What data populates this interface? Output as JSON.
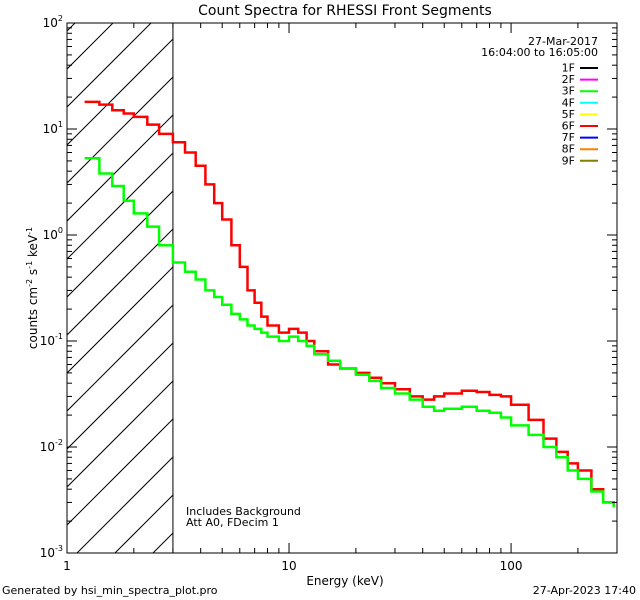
{
  "chart_data": {
    "type": "line",
    "title": "Count Spectra for RHESSI Front Segments",
    "xlabel": "Energy (keV)",
    "ylabel": "counts cm",
    "ylabel_sup1": "-2",
    "ylabel_mid": " s",
    "ylabel_sup2": "-1",
    "ylabel_end": " keV",
    "ylabel_sup3": "-1",
    "xscale": "log",
    "yscale": "log",
    "xlim": [
      1,
      300
    ],
    "ylim": [
      0.001,
      100
    ],
    "x_tick_labels": [
      {
        "value": 1,
        "base": "1",
        "exp": ""
      },
      {
        "value": 10,
        "base": "10",
        "exp": ""
      },
      {
        "value": 100,
        "base": "100",
        "exp": ""
      }
    ],
    "y_tick_labels": [
      {
        "value": 0.001,
        "base": "10",
        "exp": "-3"
      },
      {
        "value": 0.01,
        "base": "10",
        "exp": "-2"
      },
      {
        "value": 0.1,
        "base": "10",
        "exp": "-1"
      },
      {
        "value": 1,
        "base": "10",
        "exp": "0"
      },
      {
        "value": 10,
        "base": "10",
        "exp": "1"
      },
      {
        "value": 100,
        "base": "10",
        "exp": "2"
      }
    ],
    "date": "27-Mar-2017",
    "time_range": "16:04:00 to 16:05:00",
    "hatched_region_max_keV": 3,
    "annotation_lines": [
      "Includes Background",
      "Att A0, FDecim 1"
    ],
    "legend": [
      {
        "name": "1F",
        "color": "#000000"
      },
      {
        "name": "2F",
        "color": "#ff00ff"
      },
      {
        "name": "3F",
        "color": "#00ff00"
      },
      {
        "name": "4F",
        "color": "#00ffff"
      },
      {
        "name": "5F",
        "color": "#ffff00"
      },
      {
        "name": "6F",
        "color": "#ff0000"
      },
      {
        "name": "7F",
        "color": "#0000ff"
      },
      {
        "name": "8F",
        "color": "#ff8000"
      },
      {
        "name": "9F",
        "color": "#808000"
      }
    ],
    "series": [
      {
        "name": "6F",
        "color": "#ff0000",
        "x": [
          1.2,
          1.4,
          1.6,
          1.8,
          2.0,
          2.3,
          2.6,
          3.0,
          3.4,
          3.8,
          4.2,
          4.6,
          5.0,
          5.5,
          6.0,
          6.5,
          7.0,
          7.5,
          8.0,
          9.0,
          10.0,
          11.0,
          12.0,
          13.0,
          15.0,
          17.0,
          20.0,
          23.0,
          26.0,
          30.0,
          35.0,
          40.0,
          45.0,
          50.0,
          60.0,
          70.0,
          80.0,
          90.0,
          100.0,
          120.0,
          140.0,
          160.0,
          180.0,
          200.0,
          230.0,
          260.0,
          290.0
        ],
        "y": [
          18,
          17,
          15,
          14,
          13,
          11,
          9,
          7.5,
          6.0,
          4.5,
          3.0,
          2.0,
          1.4,
          0.8,
          0.5,
          0.3,
          0.23,
          0.17,
          0.14,
          0.12,
          0.13,
          0.12,
          0.1,
          0.08,
          0.06,
          0.055,
          0.05,
          0.045,
          0.04,
          0.035,
          0.03,
          0.028,
          0.03,
          0.032,
          0.034,
          0.033,
          0.031,
          0.03,
          0.025,
          0.018,
          0.012,
          0.009,
          0.007,
          0.006,
          0.004,
          0.003,
          0.0028
        ]
      },
      {
        "name": "3F",
        "color": "#00ff00",
        "x": [
          1.2,
          1.4,
          1.6,
          1.8,
          2.0,
          2.3,
          2.6,
          3.0,
          3.4,
          3.8,
          4.2,
          4.6,
          5.0,
          5.5,
          6.0,
          6.5,
          7.0,
          7.5,
          8.0,
          9.0,
          10.0,
          11.0,
          12.0,
          13.0,
          15.0,
          17.0,
          20.0,
          23.0,
          26.0,
          30.0,
          35.0,
          40.0,
          45.0,
          50.0,
          60.0,
          70.0,
          80.0,
          90.0,
          100.0,
          120.0,
          140.0,
          160.0,
          180.0,
          200.0,
          230.0,
          260.0,
          290.0
        ],
        "y": [
          5.3,
          3.8,
          2.9,
          2.1,
          1.6,
          1.2,
          0.8,
          0.55,
          0.45,
          0.38,
          0.3,
          0.26,
          0.22,
          0.18,
          0.16,
          0.14,
          0.13,
          0.12,
          0.11,
          0.1,
          0.11,
          0.1,
          0.09,
          0.075,
          0.065,
          0.055,
          0.048,
          0.042,
          0.036,
          0.032,
          0.028,
          0.024,
          0.022,
          0.023,
          0.024,
          0.022,
          0.021,
          0.019,
          0.016,
          0.013,
          0.01,
          0.008,
          0.006,
          0.005,
          0.0038,
          0.003,
          0.0027
        ]
      }
    ]
  },
  "footer": {
    "generated_by": "Generated by hsi_min_spectra_plot.pro",
    "timestamp": "27-Apr-2023 17:40"
  }
}
